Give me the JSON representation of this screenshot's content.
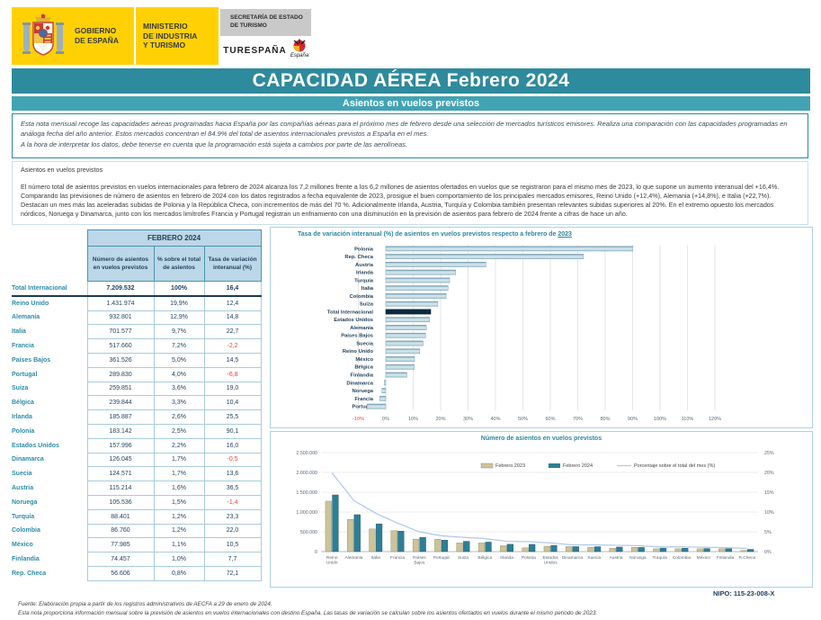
{
  "header": {
    "gobierno": "GOBIERNO\nDE ESPAÑA",
    "ministerio": "MINISTERIO\nDE INDUSTRIA\nY TURISMO",
    "secretaria": "SECRETARÍA DE ESTADO\nDE TURISMO",
    "turespana": "TURESPAÑA",
    "espana_script": "España",
    "title": "CAPACIDAD AÉREA Febrero 2024",
    "subtitle": "Asientos en vuelos previstos"
  },
  "intro": {
    "paragraphs": [
      "Esta nota mensual recoge las capacidades aéreas programadas hacia España por las compañías aéreas para el próximo mes de febrero desde una selección de mercados turísticos emisores. Realiza una comparación con las capacidades programadas en análoga  fecha del año anterior. Estos mercados concentran el 84.9% del total de asientos internacionales previstos a España en el mes.",
      "A la hora de interpretar los datos, debe tenerse en cuenta que la programación está sujeta a cambios por parte de las aerolíneas."
    ]
  },
  "body": {
    "heading": "Asientos en vuelos previstos",
    "paragraphs": [
      "El número total de asientos previstos en vuelos internacionales para febrero de 2024 alcanza los 7,2 millones frente a los 6,2 millones de asientos ofertados en vuelos que se registraron para el mismo mes de 2023,  lo que supone un aumento interanual del +16,4%.",
      "Comparando las previsiones de número de asientos en  febrero de 2024 con los datos registrados a fecha equivalente de 2023,  prosigue el buen comportamiento de los principales mercados  emisores, Reino Unido (+12,4%), Alemania (+14,8%), e Italia (+22,7%). Destacan un mes más las aceleradas subidas de Polonia y la República Checa,  con incrementos de más del 70 %.  Adicionalmente Irlanda, Austria, Turquía y Colombia también presentan relevantes subidas superiores al 20%. En el extremo opuesto los mercados nórdicos,  Noruega y Dinamarca,  junto con los mercados limítrofes Francia y Portugal registran un enfriamiento con  una disminución en la previsión de asientos para febrero de 2024 frente a  cifras de hace un año."
    ]
  },
  "table": {
    "title": "FEBRERO 2024",
    "columns": [
      "Número de asientos en vuelos previstos",
      "% sobre el total de asientos",
      "Tasa de variación interanual (%)"
    ],
    "rows": [
      {
        "label": "Total Internacional",
        "seats": "7.209.532",
        "share": "100%",
        "rate": "16,4",
        "total": true,
        "negative": false
      },
      {
        "label": "Reino Unido",
        "seats": "1.431.974",
        "share": "19,9%",
        "rate": "12,4",
        "total": false,
        "negative": false
      },
      {
        "label": "Alemania",
        "seats": "932.801",
        "share": "12,9%",
        "rate": "14,8",
        "total": false,
        "negative": false
      },
      {
        "label": "Italia",
        "seats": "701.577",
        "share": "9,7%",
        "rate": "22,7",
        "total": false,
        "negative": false
      },
      {
        "label": "Francia",
        "seats": "517.660",
        "share": "7,2%",
        "rate": "-2,2",
        "total": false,
        "negative": true
      },
      {
        "label": "Países Bajos",
        "seats": "361.526",
        "share": "5,0%",
        "rate": "14,5",
        "total": false,
        "negative": false
      },
      {
        "label": "Portugal",
        "seats": "289.830",
        "share": "4,0%",
        "rate": "-6,8",
        "total": false,
        "negative": true
      },
      {
        "label": "Suiza",
        "seats": "259.851",
        "share": "3,6%",
        "rate": "19,0",
        "total": false,
        "negative": false
      },
      {
        "label": "Bélgica",
        "seats": "239.844",
        "share": "3,3%",
        "rate": "10,4",
        "total": false,
        "negative": false
      },
      {
        "label": "Irlanda",
        "seats": "185.887",
        "share": "2,6%",
        "rate": "25,5",
        "total": false,
        "negative": false
      },
      {
        "label": "Polonia",
        "seats": "183.142",
        "share": "2,5%",
        "rate": "90,1",
        "total": false,
        "negative": false
      },
      {
        "label": "Estados Unidos",
        "seats": "157.996",
        "share": "2,2%",
        "rate": "16,0",
        "total": false,
        "negative": false
      },
      {
        "label": "Dinamarca",
        "seats": "126.045",
        "share": "1,7%",
        "rate": "-0,5",
        "total": false,
        "negative": true
      },
      {
        "label": "Suecia",
        "seats": "124.571",
        "share": "1,7%",
        "rate": "13,6",
        "total": false,
        "negative": false
      },
      {
        "label": "Austria",
        "seats": "115.214",
        "share": "1,6%",
        "rate": "36,5",
        "total": false,
        "negative": false
      },
      {
        "label": "Noruega",
        "seats": "105.536",
        "share": "1,5%",
        "rate": "-1,4",
        "total": false,
        "negative": true
      },
      {
        "label": "Turquía",
        "seats": "88.401",
        "share": "1,2%",
        "rate": "23,3",
        "total": false,
        "negative": false
      },
      {
        "label": "Colombia",
        "seats": "86.760",
        "share": "1,2%",
        "rate": "22,0",
        "total": false,
        "negative": false
      },
      {
        "label": "México",
        "seats": "77.985",
        "share": "1,1%",
        "rate": "10,5",
        "total": false,
        "negative": false
      },
      {
        "label": "Finlandia",
        "seats": "74.457",
        "share": "1,0%",
        "rate": "7,7",
        "total": false,
        "negative": false
      },
      {
        "label": "Rep. Checa",
        "seats": "56.606",
        "share": "0,8%",
        "rate": "72,1",
        "total": false,
        "negative": false
      }
    ]
  },
  "chart_data": [
    {
      "type": "bar",
      "orientation": "horizontal",
      "title": "Tasa de variación interanual (%) de asientos en vuelos previstos respecto a  febrero de",
      "title_year": "2023",
      "categories": [
        "Polonia",
        "Rep. Checa",
        "Austria",
        "Irlanda",
        "Turquía",
        "Italia",
        "Colombia",
        "Suiza",
        "Total Internacional",
        "Estados Unidos",
        "Alemania",
        "Países Bajos",
        "Suecia",
        "Reino Unido",
        "México",
        "Bélgica",
        "Finlandia",
        "Dinamarca",
        "Noruega",
        "Francia",
        "Portugal"
      ],
      "values": [
        90.1,
        72.1,
        36.5,
        25.5,
        23.3,
        22.7,
        22.0,
        19.0,
        16.4,
        16.0,
        14.8,
        14.5,
        13.6,
        12.4,
        10.5,
        10.4,
        7.7,
        -0.5,
        -1.4,
        -2.2,
        -6.8
      ],
      "highlight_category": "Total Internacional",
      "xlim": [
        -10,
        130
      ],
      "xticks": [
        -10,
        0,
        10,
        20,
        30,
        40,
        50,
        60,
        70,
        80,
        90,
        100,
        110,
        120
      ],
      "bar_color": "#BFD9E5",
      "highlight_color": "#0D2940",
      "negative_tick_color": "#E8403A",
      "grid": true
    },
    {
      "type": "bar",
      "subtype": "grouped-bars-with-line",
      "title": "Número de asientos en vuelos previstos",
      "categories": [
        "Reino Unido",
        "Alemania",
        "Italia",
        "Francia",
        "Países Bajos",
        "Portugal",
        "Suiza",
        "Bélgica",
        "Irlanda",
        "Polonia",
        "Estados Unidos",
        "Dinamarca",
        "Suecia",
        "Austria",
        "Noruega",
        "Turquía",
        "Colombia",
        "México",
        "Finlandia",
        "R.Checa"
      ],
      "series": [
        {
          "name": "Febrero 2023",
          "type": "bar",
          "color": "#CBC39A",
          "values": [
            1274000,
            812500,
            571800,
            529300,
            315700,
            311000,
            218400,
            217300,
            148100,
            96300,
            136200,
            126700,
            109700,
            84400,
            107000,
            71700,
            71100,
            70600,
            69100,
            32900
          ]
        },
        {
          "name": "Febrero 2024",
          "type": "bar",
          "color": "#2E7E97",
          "values": [
            1431974,
            932801,
            701577,
            517660,
            361526,
            289830,
            259851,
            239844,
            185887,
            183142,
            157996,
            126045,
            124571,
            115214,
            105536,
            88401,
            86760,
            77985,
            74457,
            56606
          ]
        },
        {
          "name": "Porcentaje sobre el total del mes (%)",
          "type": "line",
          "color": "#AFC7EB",
          "values": [
            19.9,
            12.9,
            9.7,
            7.2,
            5.0,
            4.0,
            3.6,
            3.3,
            2.6,
            2.5,
            2.2,
            1.7,
            1.7,
            1.6,
            1.5,
            1.2,
            1.2,
            1.1,
            1.0,
            0.8
          ]
        }
      ],
      "ylim_left": [
        0,
        2500000
      ],
      "yticks_left": [
        "2.500.000",
        "2.000.000",
        "1.500.000",
        "1.000.000",
        "500.000",
        "0"
      ],
      "ylim_right": [
        0,
        25
      ],
      "yticks_right": [
        "25%",
        "20%",
        "15%",
        "10%",
        "5%",
        "0%"
      ],
      "grid": true,
      "legend_position": "top-center"
    }
  ],
  "nipo": "NIPO: 115-23-008-X",
  "footer": {
    "line1": "Fuente: Elaboración propia a partir de los registros administrativos de AECFA a 29  de enero de 2024.",
    "line2": "Esta nota proporciona información mensual sobre la previsión de asientos en vuelos internacionales con destino España. Las tasas de variación se calculan sobre los asientos ofertados en vuelos durante el mismo periodo de 2023."
  }
}
